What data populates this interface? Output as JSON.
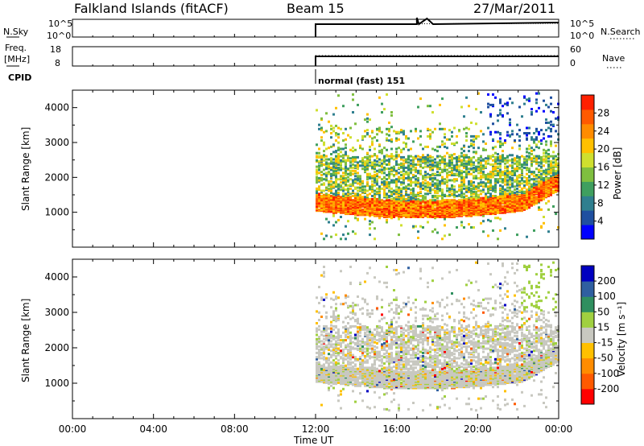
{
  "header": {
    "station": "Falkland Islands (fitACF)",
    "beam": "Beam 15",
    "date": "27/Mar/2011"
  },
  "strips": {
    "nsky": {
      "label": "N.Sky",
      "ticks": [
        "10^5",
        "10^0"
      ],
      "right_label": "N.Search",
      "right_ticks": [
        "10^5",
        "10^0"
      ]
    },
    "freq": {
      "label_top": "Freq.",
      "label_bottom": "[MHz]",
      "ticks": [
        "18",
        "8"
      ],
      "right_label": "Nave",
      "right_ticks": [
        "60",
        "0"
      ]
    },
    "cpid": {
      "label": "CPID",
      "mode": "normal (fast) 151"
    }
  },
  "chart_data": [
    {
      "type": "heatmap",
      "name": "power",
      "ylabel": "Slant Range [km]",
      "y_ticks": [
        "4000",
        "3000",
        "2000",
        "1000"
      ],
      "colorbar_label": "Power [dB]",
      "colorbar_ticks": [
        "28",
        "24",
        "20",
        "16",
        "12",
        "8",
        "4"
      ],
      "colors": [
        "#0000ff",
        "#1f4fa0",
        "#2f7f8f",
        "#3f9f5f",
        "#7fbf3f",
        "#cfdf2f",
        "#ffc000",
        "#ff8c00",
        "#ff5a00",
        "#ff2000"
      ],
      "range": [
        0,
        32
      ],
      "ylim": [
        0,
        4500
      ],
      "data_start_hour": 12
    },
    {
      "type": "heatmap",
      "name": "velocity",
      "ylabel": "Slant Range [km]",
      "y_ticks": [
        "4000",
        "3000",
        "2000",
        "1000"
      ],
      "colorbar_label": "Velocity [m s⁻¹]",
      "colorbar_ticks": [
        "200",
        "100",
        "50",
        "15",
        "-15",
        "-50",
        "-100",
        "-200"
      ],
      "colors": [
        "#ff0000",
        "#ff5a00",
        "#ff8c00",
        "#ffc000",
        "#c8c8c0",
        "#a0d040",
        "#2f8f5f",
        "#2f5fa0",
        "#0000c0"
      ],
      "ylim": [
        0,
        4500
      ],
      "data_start_hour": 12
    }
  ],
  "x_axis": {
    "title": "Time UT",
    "ticks": [
      "00:00",
      "04:00",
      "08:00",
      "12:00",
      "16:00",
      "20:00",
      "00:00"
    ],
    "range": [
      0,
      24
    ]
  }
}
